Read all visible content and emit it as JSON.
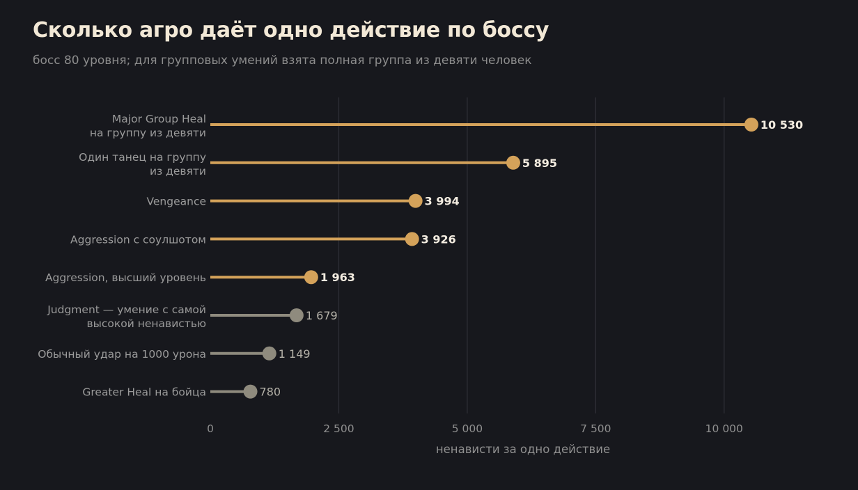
{
  "title": "Сколько агро даёт одно действие по боссу",
  "subtitle": "босс 80 уровня; для групповых умений взята полная группа из девяти человек",
  "colors": {
    "background": "#17181d",
    "title": "#f2e8d6",
    "highlight": "#d4a25a",
    "muted": "#8f8b7e",
    "grid": "#2e2f36",
    "highlight_value_label": "#f3ece0",
    "muted_value_label": "#b5b2a9"
  },
  "chart_data": {
    "type": "lollipop",
    "orientation": "horizontal",
    "xlabel": "ненависти за одно действие",
    "xlim": [
      0,
      11500
    ],
    "xticks": [
      0,
      2500,
      5000,
      7500,
      10000
    ],
    "xtick_labels": [
      "0",
      "2 500",
      "5 000",
      "7 500",
      "10 000"
    ],
    "grid": "vertical",
    "categories": [
      [
        "Major Group Heal",
        "на группу из девяти"
      ],
      [
        "Один танец на группу",
        "из девяти"
      ],
      [
        "Vengeance"
      ],
      [
        "Aggression с соулшотом"
      ],
      [
        "Aggression, высший уровень"
      ],
      [
        "Judgment — умение с самой",
        "высокой ненавистью"
      ],
      [
        "Обычный удар на 1000 урона"
      ],
      [
        "Greater Heal на бойца"
      ]
    ],
    "values": [
      10530,
      5895,
      3994,
      3926,
      1963,
      1679,
      1149,
      780
    ],
    "value_labels": [
      "10 530",
      "5 895",
      "3 994",
      "3 926",
      "1 963",
      "1 679",
      "1 149",
      "780"
    ],
    "highlighted": [
      true,
      true,
      true,
      true,
      true,
      false,
      false,
      false
    ]
  }
}
